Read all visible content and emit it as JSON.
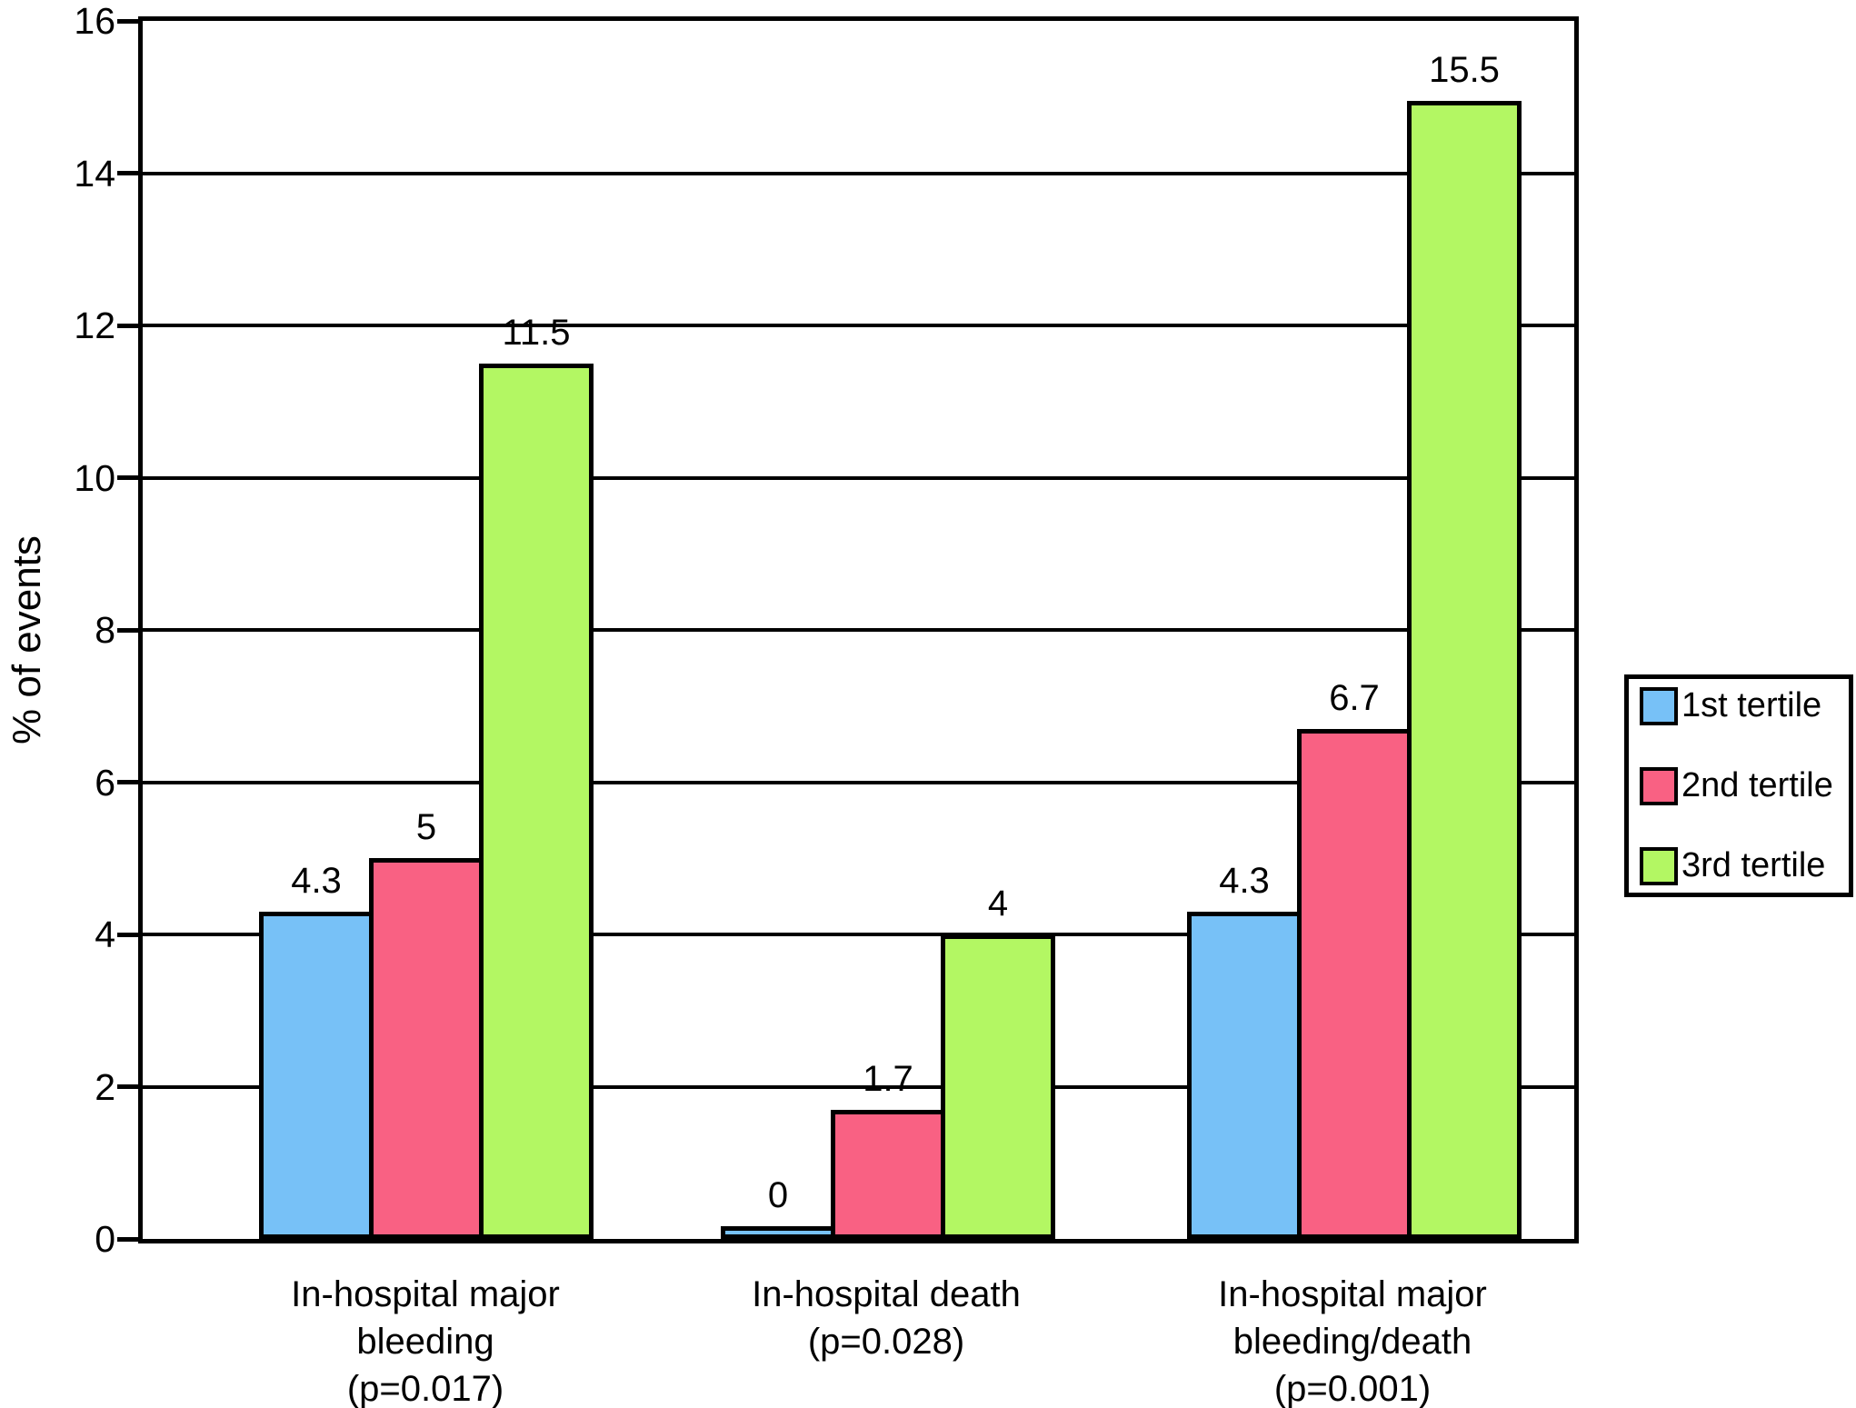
{
  "chart_data": {
    "type": "bar",
    "title": "",
    "ylabel": "% of events",
    "ylim": [
      0,
      16
    ],
    "yticks": [
      0,
      2,
      4,
      6,
      8,
      10,
      12,
      14,
      16
    ],
    "grid": true,
    "legend_position": "right",
    "categories": [
      {
        "label": "In-hospital major bleeding (p=0.017)",
        "label_lines": [
          "In-hospital major",
          "bleeding",
          "(p=0.017)"
        ]
      },
      {
        "label": "In-hospital death (p=0.028)",
        "label_lines": [
          "In-hospital death",
          "(p=0.028)"
        ]
      },
      {
        "label": "In-hospital major bleeding/death (p=0.001)",
        "label_lines": [
          "In-hospital major",
          "bleeding/death",
          "(p=0.001)"
        ]
      }
    ],
    "series": [
      {
        "name": "1st tertile",
        "color": "#77c1f7",
        "values": [
          4.3,
          0,
          4.3
        ],
        "value_labels": [
          "4.3",
          "0",
          "4.3"
        ]
      },
      {
        "name": "2nd tertile",
        "color": "#f96183",
        "values": [
          5,
          1.7,
          6.7
        ],
        "value_labels": [
          "5",
          "1.7",
          "6.7"
        ]
      },
      {
        "name": "3rd tertile",
        "color": "#b3f763",
        "values": [
          11.5,
          4,
          15.5
        ],
        "value_labels": [
          "11.5",
          "4",
          "15.5"
        ]
      }
    ],
    "colors": {
      "axis": "#000000",
      "background": "#ffffff",
      "text": "#000000"
    }
  }
}
